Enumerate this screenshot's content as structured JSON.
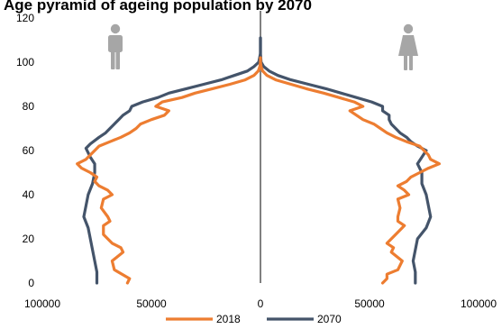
{
  "chart_data": {
    "type": "line",
    "title": "Age pyramid of ageing population by 2070",
    "center_axis_label": "0",
    "xlim": [
      -100000,
      100000
    ],
    "ylim": [
      0,
      120
    ],
    "xticks": [
      {
        "value": -100000,
        "label": "100000"
      },
      {
        "value": -50000,
        "label": "50000"
      },
      {
        "value": 0,
        "label": "0"
      },
      {
        "value": 50000,
        "label": "50000"
      },
      {
        "value": 100000,
        "label": "100000"
      }
    ],
    "yticks": [
      0,
      20,
      40,
      60,
      80,
      100,
      120
    ],
    "grid": false,
    "legend_position": "bottom",
    "icons": [
      {
        "name": "male-icon",
        "side": "left"
      },
      {
        "name": "female-icon",
        "side": "right"
      }
    ],
    "series": [
      {
        "name": "2018",
        "color": "#ED7D31",
        "male": [
          [
            -61000,
            0
          ],
          [
            -60000,
            2
          ],
          [
            -67000,
            6
          ],
          [
            -68000,
            10
          ],
          [
            -63000,
            14
          ],
          [
            -64000,
            16
          ],
          [
            -68000,
            18
          ],
          [
            -72000,
            22
          ],
          [
            -72000,
            26
          ],
          [
            -69000,
            28
          ],
          [
            -70000,
            30
          ],
          [
            -73000,
            34
          ],
          [
            -72000,
            38
          ],
          [
            -68000,
            40
          ],
          [
            -70000,
            42
          ],
          [
            -74000,
            44
          ],
          [
            -76000,
            46
          ],
          [
            -75000,
            48
          ],
          [
            -78000,
            50
          ],
          [
            -82000,
            52
          ],
          [
            -84000,
            54
          ],
          [
            -80000,
            56
          ],
          [
            -78000,
            58
          ],
          [
            -76000,
            60
          ],
          [
            -74000,
            62
          ],
          [
            -69000,
            64
          ],
          [
            -64000,
            66
          ],
          [
            -60000,
            68
          ],
          [
            -57000,
            70
          ],
          [
            -55000,
            72
          ],
          [
            -50000,
            74
          ],
          [
            -44000,
            76
          ],
          [
            -42000,
            78
          ],
          [
            -48000,
            80
          ],
          [
            -45000,
            82
          ],
          [
            -36000,
            84
          ],
          [
            -30000,
            86
          ],
          [
            -22000,
            88
          ],
          [
            -14000,
            90
          ],
          [
            -7000,
            92
          ],
          [
            -3000,
            94
          ],
          [
            -1000,
            96
          ],
          [
            -300,
            98
          ],
          [
            0,
            100
          ],
          [
            0,
            102
          ]
        ]
      },
      {
        "name": "2070",
        "color": "#44546A",
        "male": [
          [
            -75000,
            0
          ],
          [
            -75000,
            5
          ],
          [
            -76000,
            10
          ],
          [
            -77000,
            15
          ],
          [
            -78000,
            20
          ],
          [
            -79000,
            25
          ],
          [
            -81000,
            30
          ],
          [
            -80000,
            35
          ],
          [
            -79000,
            40
          ],
          [
            -77000,
            45
          ],
          [
            -76000,
            50
          ],
          [
            -76000,
            54
          ],
          [
            -78000,
            57
          ],
          [
            -80000,
            61
          ],
          [
            -78000,
            63
          ],
          [
            -74000,
            66
          ],
          [
            -71000,
            68
          ],
          [
            -69000,
            70
          ],
          [
            -67000,
            72
          ],
          [
            -65000,
            74
          ],
          [
            -63000,
            76
          ],
          [
            -60000,
            78
          ],
          [
            -59000,
            80
          ],
          [
            -54000,
            82
          ],
          [
            -47000,
            84
          ],
          [
            -42000,
            86
          ],
          [
            -34000,
            88
          ],
          [
            -26000,
            90
          ],
          [
            -18000,
            92
          ],
          [
            -12000,
            94
          ],
          [
            -6000,
            96
          ],
          [
            -3000,
            98
          ],
          [
            -800,
            100
          ],
          [
            0,
            104
          ],
          [
            0,
            108
          ],
          [
            0,
            111
          ]
        ]
      }
    ],
    "female_2018": [
      [
        56000,
        0
      ],
      [
        58000,
        2
      ],
      [
        58000,
        4
      ],
      [
        63000,
        6
      ],
      [
        65000,
        10
      ],
      [
        60000,
        14
      ],
      [
        61000,
        16
      ],
      [
        58000,
        18
      ],
      [
        62000,
        22
      ],
      [
        66000,
        26
      ],
      [
        63000,
        28
      ],
      [
        63000,
        30
      ],
      [
        64000,
        34
      ],
      [
        63000,
        38
      ],
      [
        68000,
        40
      ],
      [
        66000,
        42
      ],
      [
        63000,
        44
      ],
      [
        67000,
        46
      ],
      [
        69000,
        48
      ],
      [
        73000,
        50
      ],
      [
        77000,
        52
      ],
      [
        82000,
        54
      ],
      [
        78000,
        56
      ],
      [
        77000,
        58
      ],
      [
        75000,
        60
      ],
      [
        73000,
        62
      ],
      [
        67000,
        64
      ],
      [
        62000,
        66
      ],
      [
        58000,
        68
      ],
      [
        55000,
        70
      ],
      [
        52000,
        72
      ],
      [
        47000,
        74
      ],
      [
        44000,
        76
      ],
      [
        41000,
        78
      ],
      [
        47000,
        80
      ],
      [
        43000,
        82
      ],
      [
        36000,
        84
      ],
      [
        29000,
        86
      ],
      [
        21000,
        88
      ],
      [
        14000,
        90
      ],
      [
        7000,
        92
      ],
      [
        3000,
        94
      ],
      [
        1000,
        96
      ],
      [
        300,
        98
      ],
      [
        0,
        100
      ],
      [
        0,
        102
      ]
    ],
    "female_2070": [
      [
        71000,
        0
      ],
      [
        71000,
        5
      ],
      [
        70000,
        10
      ],
      [
        71000,
        15
      ],
      [
        72000,
        20
      ],
      [
        76000,
        25
      ],
      [
        78000,
        30
      ],
      [
        77000,
        35
      ],
      [
        76000,
        40
      ],
      [
        74000,
        45
      ],
      [
        74000,
        50
      ],
      [
        72000,
        54
      ],
      [
        74000,
        57
      ],
      [
        76000,
        60
      ],
      [
        72000,
        62
      ],
      [
        69000,
        64
      ],
      [
        67000,
        66
      ],
      [
        64000,
        68
      ],
      [
        62000,
        70
      ],
      [
        60000,
        72
      ],
      [
        59000,
        74
      ],
      [
        59000,
        76
      ],
      [
        56000,
        78
      ],
      [
        56000,
        80
      ],
      [
        51000,
        82
      ],
      [
        44000,
        84
      ],
      [
        37000,
        86
      ],
      [
        30000,
        88
      ],
      [
        22000,
        90
      ],
      [
        14000,
        92
      ],
      [
        8000,
        94
      ],
      [
        4000,
        96
      ],
      [
        1500,
        98
      ],
      [
        300,
        100
      ],
      [
        0,
        104
      ],
      [
        0,
        108
      ],
      [
        0,
        111
      ]
    ]
  }
}
